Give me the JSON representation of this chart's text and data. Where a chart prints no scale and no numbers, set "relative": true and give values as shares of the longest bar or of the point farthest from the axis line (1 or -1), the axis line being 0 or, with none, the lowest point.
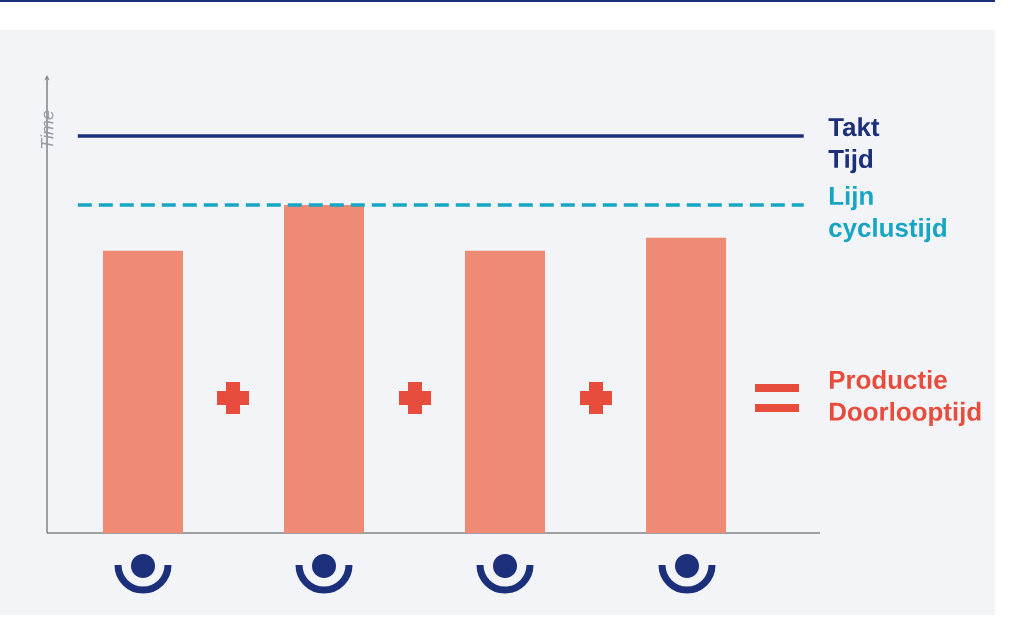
{
  "chart_data": {
    "type": "bar",
    "relative": true,
    "ylabel": "Time",
    "categories": [
      null,
      null,
      null,
      null
    ],
    "values": [
      0.86,
      1,
      0.86,
      0.9
    ],
    "color": "#ef8a74",
    "ref_lines": [
      {
        "axis": "y",
        "value": 1.21,
        "label": "Takt Tijd",
        "color": "#1b2f7a",
        "line_style": "solid"
      },
      {
        "axis": "y",
        "value": 1,
        "label": "Lijn cyclustijd",
        "color": "#16a6c4",
        "line_style": "dashed"
      }
    ],
    "annotations": [
      "Productie Doorlooptijd"
    ]
  }
}
